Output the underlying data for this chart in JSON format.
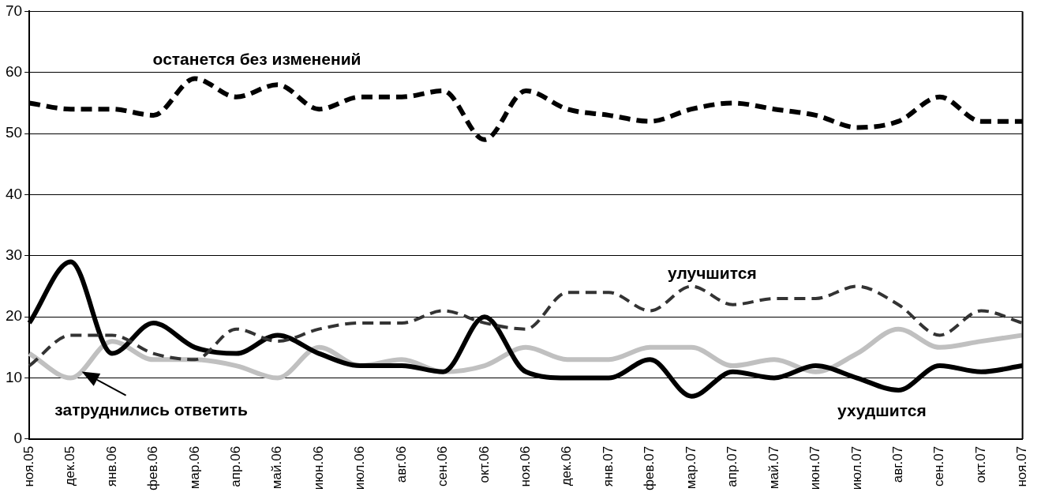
{
  "chart_data": {
    "type": "line",
    "categories": [
      "ноя.05",
      "дек.05",
      "янв.06",
      "фев.06",
      "мар.06",
      "апр.06",
      "май.06",
      "июн.06",
      "июл.06",
      "авг.06",
      "сен.06",
      "окт.06",
      "ноя.06",
      "дек.06",
      "янв.07",
      "фев.07",
      "мар.07",
      "апр.07",
      "май.07",
      "июн.07",
      "июл.07",
      "авг.07",
      "сен.07",
      "окт.07",
      "ноя.07"
    ],
    "series": [
      {
        "name": "останется без изменений",
        "color": "#000000",
        "line_style": "dashed",
        "values": [
          55,
          54,
          54,
          53,
          59,
          56,
          58,
          54,
          56,
          56,
          57,
          49,
          57,
          54,
          53,
          52,
          54,
          55,
          54,
          53,
          51,
          52,
          56,
          52,
          52
        ]
      },
      {
        "name": "улучшится",
        "color": "#333333",
        "line_style": "dashed",
        "values": [
          12,
          17,
          17,
          14,
          13,
          18,
          16,
          18,
          19,
          19,
          21,
          19,
          18,
          24,
          24,
          21,
          25,
          22,
          23,
          23,
          25,
          22,
          17,
          21,
          19
        ]
      },
      {
        "name": "ухудшится",
        "color": "#000000",
        "line_style": "solid",
        "values": [
          19,
          29,
          14,
          19,
          15,
          14,
          17,
          14,
          12,
          12,
          11,
          20,
          11,
          10,
          10,
          13,
          7,
          11,
          10,
          12,
          10,
          8,
          12,
          11,
          12
        ]
      },
      {
        "color": "#c0c0c0",
        "line_style": "solid",
        "values": [
          14,
          10,
          16,
          13,
          13,
          12,
          10,
          15,
          12,
          13,
          11,
          12,
          15,
          13,
          13,
          15,
          15,
          12,
          13,
          11,
          14,
          18,
          15,
          16,
          17
        ]
      }
    ],
    "annotations": [
      {
        "text": "затруднились ответить",
        "x": "дек.05",
        "y": 10
      }
    ],
    "ylim": [
      0,
      70
    ],
    "yticks": [
      0,
      10,
      20,
      30,
      40,
      50,
      60,
      70
    ],
    "grid": "y",
    "legend": false,
    "marker": "none"
  }
}
